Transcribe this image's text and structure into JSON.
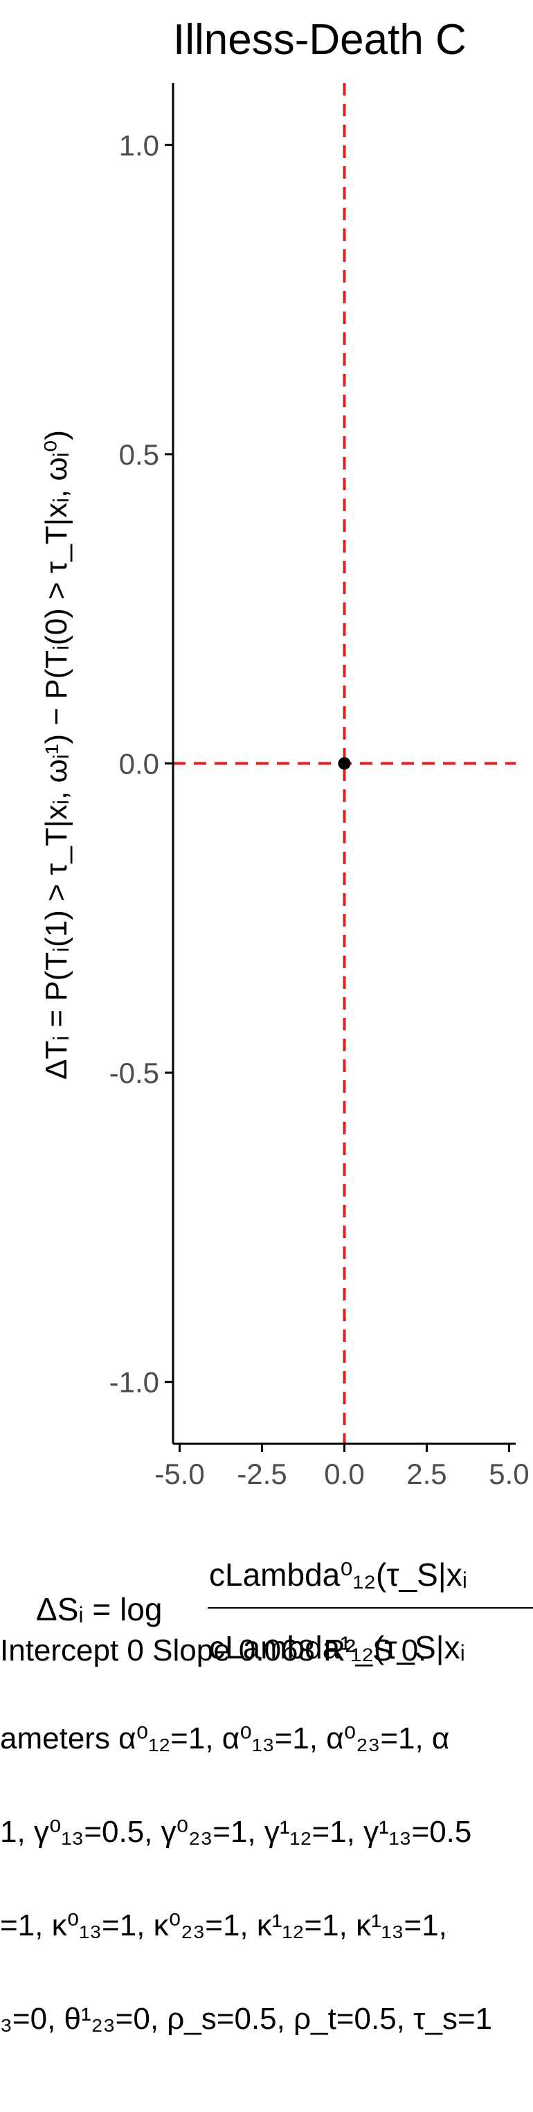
{
  "chart_data": {
    "type": "scatter",
    "title": "Illness-Death C",
    "ylabel": "ΔTᵢ = P(Tᵢ(1) > τ_T|xᵢ, ωᵢ¹) − P(Tᵢ(0) > τ_T|xᵢ, ωᵢ⁰)",
    "xlabel_lines": [
      "ΔSᵢ = log",
      "cLambda⁰₁₂(τ_S|xᵢ",
      "cLambda¹₁₂(τ_S|xᵢ"
    ],
    "subtitle_lines": [
      "Intercept 0 Slope 0.068 R²_S 0.",
      "ameters α⁰₁₂=1, α⁰₁₃=1, α⁰₂₃=1, α",
      "1, γ⁰₁₃=0.5, γ⁰₂₃=1, γ¹₁₂=1, γ¹₁₃=0.5",
      "=1, κ⁰₁₃=1, κ⁰₂₃=1, κ¹₁₂=1, κ¹₁₃=1,",
      "₃=0, θ¹₂₃=0, ρ_s=0.5, ρ_t=0.5, τ_s=1"
    ],
    "xlim": [
      -5.2,
      5.2
    ],
    "ylim": [
      -1.1,
      1.1
    ],
    "x_ticks": [
      -5.0,
      -2.5,
      0.0,
      2.5,
      5.0
    ],
    "x_tick_labels": [
      "-5.0",
      "-2.5",
      "0.0",
      "2.5",
      "5.0"
    ],
    "y_ticks": [
      1.0,
      0.5,
      0.0,
      -0.5,
      -1.0
    ],
    "y_tick_labels": [
      "1.0",
      "0.5",
      "0.0",
      "-0.5",
      "-1.0"
    ],
    "points": [
      {
        "x": 0.0,
        "y": 0.0
      }
    ],
    "reference_lines": {
      "vertical_x": 0.0,
      "horizontal_y": 0.0,
      "color": "#e41a1c",
      "style": "dashed"
    },
    "grid": false,
    "point_color": "#000000",
    "axis_color": "#000000",
    "tick_label_color": "#4d4d4d"
  }
}
